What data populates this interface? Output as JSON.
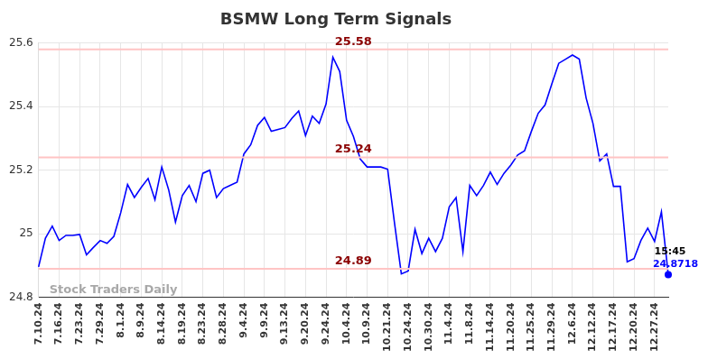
{
  "chart_data": {
    "type": "line",
    "title": "BSMW Long Term Signals",
    "watermark": "Stock Traders Daily",
    "color": "#0000ff",
    "grid": true,
    "ylim": [
      24.8,
      25.6
    ],
    "yticks": [
      24.8,
      25,
      25.2,
      25.4,
      25.6
    ],
    "categories": [
      "7.10.24",
      null,
      null,
      "7.16.24",
      null,
      null,
      "7.23.24",
      null,
      null,
      "7.29.24",
      null,
      null,
      "8.1.24",
      null,
      null,
      "8.9.24",
      null,
      null,
      "8.14.24",
      null,
      null,
      "8.19.24",
      null,
      null,
      "8.23.24",
      null,
      null,
      "8.28.24",
      null,
      null,
      "9.4.24",
      null,
      null,
      "9.9.24",
      null,
      null,
      "9.13.24",
      null,
      null,
      "9.20.24",
      null,
      null,
      "9.24.24",
      null,
      null,
      "10.4.24",
      null,
      null,
      "10.9.24",
      null,
      null,
      "10.21.24",
      null,
      null,
      "10.24.24",
      null,
      null,
      "10.30.24",
      null,
      null,
      "11.4.24",
      null,
      null,
      "11.8.24",
      null,
      null,
      "11.14.24",
      null,
      null,
      "11.20.24",
      null,
      null,
      "11.25.24",
      null,
      null,
      "11.29.24",
      null,
      null,
      "12.6.24",
      null,
      null,
      "12.12.24",
      null,
      null,
      "12.17.24",
      null,
      null,
      "12.20.24",
      null,
      null,
      "12.27.24",
      null,
      null
    ],
    "values": [
      24.896,
      24.986,
      25.024,
      24.979,
      24.995,
      24.995,
      24.998,
      24.934,
      24.957,
      24.979,
      24.97,
      24.992,
      25.066,
      25.155,
      25.114,
      25.146,
      25.174,
      25.107,
      25.21,
      25.139,
      25.037,
      25.12,
      25.152,
      25.101,
      25.19,
      25.2,
      25.114,
      25.142,
      25.152,
      25.162,
      25.251,
      25.28,
      25.341,
      25.366,
      25.322,
      25.328,
      25.334,
      25.363,
      25.386,
      25.309,
      25.37,
      25.347,
      25.408,
      25.555,
      25.51,
      25.357,
      25.306,
      25.235,
      25.21,
      25.21,
      25.21,
      25.203,
      25.034,
      24.874,
      24.883,
      25.014,
      24.938,
      24.986,
      24.944,
      24.986,
      25.085,
      25.114,
      24.944,
      25.152,
      25.12,
      25.152,
      25.194,
      25.155,
      25.19,
      25.216,
      25.248,
      25.261,
      25.322,
      25.379,
      25.405,
      25.472,
      25.536,
      25.549,
      25.562,
      25.549,
      25.427,
      25.347,
      25.229,
      25.251,
      25.149,
      25.149,
      24.912,
      24.922,
      24.979,
      25.018,
      24.976,
      25.069,
      24.8718
    ],
    "signal_levels": [
      {
        "value": 25.58,
        "label": "25.58"
      },
      {
        "value": 25.24,
        "label": "25.24"
      },
      {
        "value": 24.89,
        "label": "24.89"
      }
    ],
    "last_point": {
      "time": "15:45",
      "label": "24.8718"
    }
  }
}
